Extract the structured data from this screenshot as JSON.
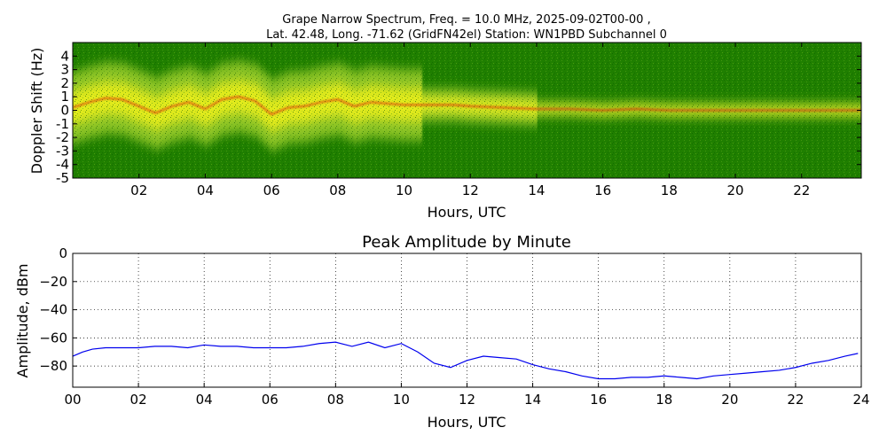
{
  "chart_data": [
    {
      "type": "heatmap",
      "title_line1": "Grape Narrow Spectrum, Freq. = 10.0 MHz, 2025-09-02T00-00 ,",
      "title_line2": "Lat.  42.48, Long. -71.62 (GridFN42el) Station: WN1PBD Subchannel 0",
      "xlabel": "Hours, UTC",
      "ylabel": "Doppler Shift (Hz)",
      "xlim": [
        0,
        23.8
      ],
      "ylim": [
        -5,
        5
      ],
      "x_ticks": [
        "02",
        "04",
        "06",
        "08",
        "10",
        "12",
        "14",
        "16",
        "18",
        "20",
        "22"
      ],
      "x_tick_values": [
        2,
        4,
        6,
        8,
        10,
        12,
        14,
        16,
        18,
        20,
        22
      ],
      "y_ticks": [
        "-5",
        "-4",
        "-3",
        "-2",
        "-1",
        "0",
        "1",
        "2",
        "3",
        "4"
      ],
      "y_tick_values": [
        -5,
        -4,
        -3,
        -2,
        -1,
        0,
        1,
        2,
        3,
        4
      ],
      "trace_hz": {
        "hours": [
          0,
          0.5,
          1,
          1.5,
          2,
          2.5,
          3,
          3.5,
          4,
          4.5,
          5,
          5.5,
          6,
          6.5,
          7,
          7.5,
          8,
          8.5,
          9,
          9.5,
          10,
          10.5,
          11,
          11.5,
          12,
          13,
          14,
          15,
          16,
          17,
          18,
          19,
          20,
          21,
          22,
          23,
          23.8
        ],
        "values": [
          0.2,
          0.6,
          0.9,
          0.8,
          0.3,
          -0.2,
          0.3,
          0.6,
          0.1,
          0.8,
          1.0,
          0.7,
          -0.3,
          0.2,
          0.3,
          0.6,
          0.8,
          0.3,
          0.6,
          0.5,
          0.4,
          0.4,
          0.4,
          0.4,
          0.3,
          0.2,
          0.1,
          0.1,
          0.0,
          0.1,
          0.0,
          0.0,
          0.0,
          0.0,
          0.0,
          0.0,
          0.0
        ]
      },
      "colors": {
        "background": "#1f7f00",
        "mid": "#9acd2a",
        "high": "#f2f21a",
        "peak": "#e01010"
      }
    },
    {
      "type": "line",
      "title": "Peak Amplitude by Minute",
      "xlabel": "Hours, UTC",
      "ylabel": "Amplitude, dBm",
      "xlim": [
        0,
        24
      ],
      "ylim": [
        -95,
        0
      ],
      "grid": true,
      "x_ticks": [
        "00",
        "02",
        "04",
        "06",
        "08",
        "10",
        "12",
        "14",
        "16",
        "18",
        "20",
        "22",
        "24"
      ],
      "x_tick_values": [
        0,
        2,
        4,
        6,
        8,
        10,
        12,
        14,
        16,
        18,
        20,
        22,
        24
      ],
      "y_ticks": [
        "0",
        "−20",
        "−40",
        "−60",
        "−80"
      ],
      "y_tick_values": [
        0,
        -20,
        -40,
        -60,
        -80
      ],
      "line_color": "#0000ee",
      "series": [
        {
          "x": [
            0,
            0.3,
            0.6,
            1,
            1.5,
            2,
            2.5,
            3,
            3.5,
            4,
            4.5,
            5,
            5.5,
            6,
            6.5,
            7,
            7.5,
            8,
            8.5,
            9,
            9.5,
            10,
            10.5,
            11,
            11.5,
            12,
            12.5,
            13,
            13.5,
            14,
            14.5,
            15,
            15.5,
            16,
            16.5,
            17,
            17.5,
            18,
            18.5,
            19,
            19.5,
            20,
            20.5,
            21,
            21.5,
            22,
            22.5,
            23,
            23.5,
            23.9
          ],
          "y": [
            -73,
            -70,
            -68,
            -67,
            -67,
            -67,
            -66,
            -66,
            -67,
            -65,
            -66,
            -66,
            -67,
            -67,
            -67,
            -66,
            -64,
            -63,
            -66,
            -63,
            -67,
            -64,
            -70,
            -78,
            -81,
            -76,
            -73,
            -74,
            -75,
            -79,
            -82,
            -84,
            -87,
            -89,
            -89,
            -88,
            -88,
            -87,
            -88,
            -89,
            -87,
            -86,
            -85,
            -84,
            -83,
            -81,
            -78,
            -76,
            -73,
            -71
          ]
        }
      ]
    }
  ]
}
